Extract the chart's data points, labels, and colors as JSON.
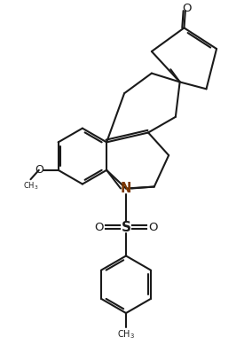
{
  "background_color": "#ffffff",
  "line_color": "#1a1a1a",
  "line_width": 1.5,
  "figsize": [
    2.84,
    3.89
  ],
  "dpi": 100,
  "xlim": [
    0,
    10
  ],
  "ylim": [
    0,
    14
  ],
  "N_color": "#7B3600"
}
